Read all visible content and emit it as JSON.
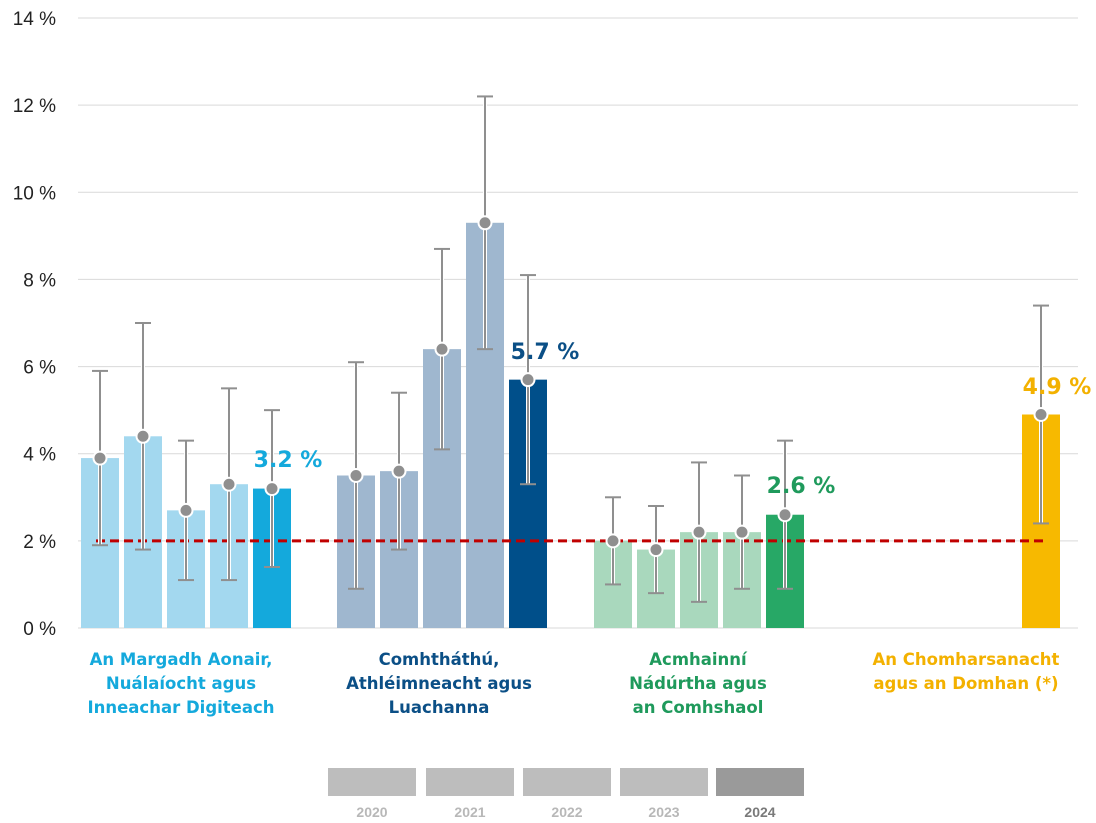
{
  "chart_data": {
    "type": "bar",
    "ylim": [
      0,
      14
    ],
    "yticks": [
      {
        "value": 0,
        "label": "0 %"
      },
      {
        "value": 2,
        "label": "2 %"
      },
      {
        "value": 4,
        "label": "4 %"
      },
      {
        "value": 6,
        "label": "6 %"
      },
      {
        "value": 8,
        "label": "8 %"
      },
      {
        "value": 10,
        "label": "10 %"
      },
      {
        "value": 12,
        "label": "12 %"
      },
      {
        "value": 14,
        "label": "14 %"
      }
    ],
    "grid": true,
    "reference_line": {
      "value": 2,
      "style": "dashed",
      "color": "#c00000"
    },
    "years": [
      "2020",
      "2021",
      "2022",
      "2023",
      "2024"
    ],
    "groups": [
      {
        "label_lines": [
          "An Margadh Aonair,",
          "Nuálaíocht agus",
          "Inneachar Digiteach"
        ],
        "label_color": "#14a9dc",
        "colors": [
          "#a3d8ef",
          "#a3d8ef",
          "#a3d8ef",
          "#a3d8ef",
          "#14a9dc"
        ],
        "values": [
          3.9,
          4.4,
          2.7,
          3.3,
          3.2
        ],
        "lower": [
          1.9,
          1.8,
          1.1,
          1.1,
          1.4
        ],
        "upper": [
          5.9,
          7.0,
          4.3,
          5.5,
          5.0
        ],
        "highlight_label": "3.2 %"
      },
      {
        "label_lines": [
          "Comhtháthú,",
          "Athléimneacht agus",
          "Luachanna"
        ],
        "label_color": "#0b4f86",
        "colors": [
          "#9fb7cf",
          "#9fb7cf",
          "#9fb7cf",
          "#9fb7cf",
          "#004f8a"
        ],
        "values": [
          3.5,
          3.6,
          6.4,
          9.3,
          5.7
        ],
        "lower": [
          0.9,
          1.8,
          4.1,
          6.4,
          3.3
        ],
        "upper": [
          6.1,
          5.4,
          8.7,
          12.2,
          8.1
        ],
        "highlight_label": "5.7 %"
      },
      {
        "label_lines": [
          "Acmhainní",
          "Nádúrtha agus",
          "an Comhshaol"
        ],
        "label_color": "#1f9a5c",
        "colors": [
          "#a9d8bd",
          "#a9d8bd",
          "#a9d8bd",
          "#a9d8bd",
          "#27a866"
        ],
        "values": [
          2.0,
          1.8,
          2.2,
          2.2,
          2.6
        ],
        "lower": [
          1.0,
          0.8,
          0.6,
          0.9,
          0.9
        ],
        "upper": [
          3.0,
          2.8,
          3.8,
          3.5,
          4.3
        ],
        "highlight_label": "2.6 %"
      },
      {
        "label_lines": [
          "An Chomharsanacht",
          "agus an Domhan (*)"
        ],
        "label_color": "#f3b100",
        "colors": [
          null,
          null,
          null,
          null,
          "#f7b900"
        ],
        "values": [
          null,
          null,
          null,
          null,
          4.9
        ],
        "lower": [
          null,
          null,
          null,
          null,
          2.4
        ],
        "upper": [
          null,
          null,
          null,
          null,
          7.4
        ],
        "highlight_label": "4.9 %"
      }
    ],
    "legend": {
      "placement": "bottom-center",
      "swatch_colors": [
        "#bdbdbd",
        "#bdbdbd",
        "#bdbdbd",
        "#bdbdbd",
        "#9a9a9a"
      ],
      "label_colors": [
        "#b8b8b8",
        "#b8b8b8",
        "#b8b8b8",
        "#b8b8b8",
        "#7a7a7a"
      ]
    }
  }
}
